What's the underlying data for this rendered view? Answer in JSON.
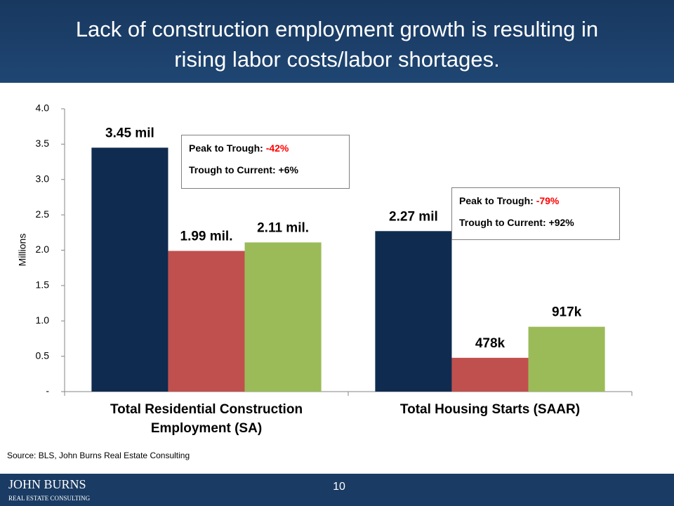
{
  "header": {
    "title_lines": [
      "Lack of construction employment growth is resulting in",
      "rising labor costs/labor shortages."
    ]
  },
  "chart_data": {
    "type": "bar",
    "categories": [
      "Total Residential Construction Employment (SA)",
      "Total Housing Starts (SAAR)"
    ],
    "series": [
      {
        "color": "#0f2b50",
        "values": [
          3.45,
          2.27
        ],
        "value_labels": [
          "3.45 mil",
          "2.27 mil"
        ]
      },
      {
        "color": "#c0504d",
        "values": [
          1.99,
          0.478
        ],
        "value_labels": [
          "1.99 mil.",
          "478k"
        ]
      },
      {
        "color": "#9bbb59",
        "values": [
          2.11,
          0.917
        ],
        "value_labels": [
          "2.11 mil.",
          "917k"
        ]
      }
    ],
    "ylabel": "Millions",
    "ylim": [
      0,
      4
    ],
    "yticks": [
      {
        "value": 0,
        "label": "-"
      },
      0.5,
      {
        "value": 1,
        "label": "1.0"
      },
      1.5,
      {
        "value": 2,
        "label": "2.0"
      },
      2.5,
      {
        "value": 3,
        "label": "3.0"
      },
      3.5,
      {
        "value": 4,
        "label": "4.0"
      }
    ],
    "annotations": [
      {
        "peak_label": "Peak to Trough:",
        "peak_value": "-42%",
        "current": "Trough to Current: +6%"
      },
      {
        "peak_label": "Peak to Trough:",
        "peak_value": "-79%",
        "current": "Trough to Current: +92%"
      }
    ]
  },
  "source": "Source: BLS, John Burns Real Estate Consulting",
  "footer": {
    "page": "10",
    "logo_line1": "JOHN BURNS",
    "logo_line2": "REAL ESTATE CONSULTING"
  }
}
